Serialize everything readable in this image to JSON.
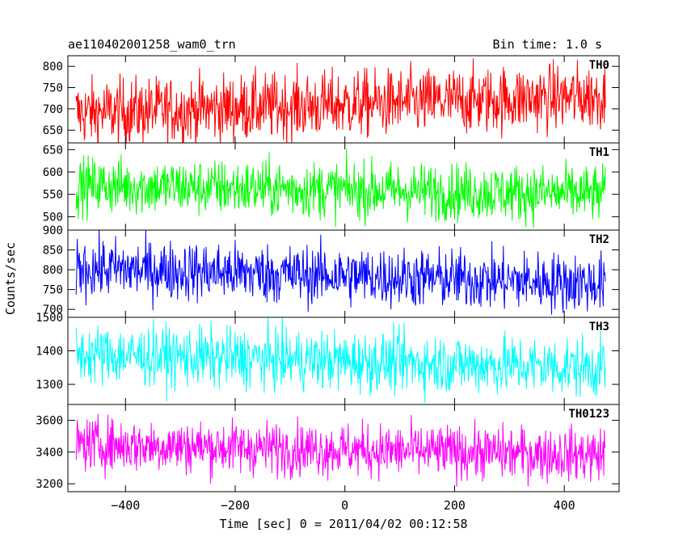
{
  "header": {
    "title": "ae110402001258_wam0_trn",
    "bin_time": "Bin time: 1.0 s"
  },
  "chart_data": {
    "type": "line",
    "xlabel": "Time [sec] 0 = 2011/04/02 00:12:58",
    "ylabel": "Counts/sec",
    "xlim": [
      -505,
      500
    ],
    "x_start": -490,
    "x_end": 475,
    "bin_time_s": 1.0,
    "x_ticks": [
      -400,
      -200,
      0,
      200,
      400
    ],
    "x_tick_labels": [
      "−400",
      "−200",
      "0",
      "200",
      "400"
    ],
    "grid": false,
    "panels": [
      {
        "name": "TH0",
        "color": "#ff0000",
        "ylim": [
          620,
          825
        ],
        "y_ticks": [
          650,
          700,
          750,
          800
        ],
        "y_tick_labels": [
          "650",
          "700",
          "750",
          "800"
        ],
        "mean_start": 690,
        "mean_end": 730,
        "scatter": 40
      },
      {
        "name": "TH1",
        "color": "#00ff00",
        "ylim": [
          470,
          665
        ],
        "y_ticks": [
          500,
          550,
          600,
          650
        ],
        "y_tick_labels": [
          "500",
          "550",
          "600",
          "650"
        ],
        "mean_start": 570,
        "mean_end": 550,
        "scatter": 32
      },
      {
        "name": "TH2",
        "color": "#0000ff",
        "ylim": [
          680,
          900
        ],
        "y_ticks": [
          700,
          750,
          800,
          850,
          900
        ],
        "y_tick_labels": [
          "700",
          "750",
          "800",
          "850",
          "900"
        ],
        "mean_start": 805,
        "mean_end": 765,
        "scatter": 38
      },
      {
        "name": "TH3",
        "color": "#00ffff",
        "ylim": [
          1240,
          1500
        ],
        "y_ticks": [
          1300,
          1400,
          1500
        ],
        "y_tick_labels": [
          "1300",
          "1400",
          "1500"
        ],
        "mean_start": 1390,
        "mean_end": 1350,
        "scatter": 45
      },
      {
        "name": "TH0123",
        "color": "#ff00ff",
        "ylim": [
          3150,
          3700
        ],
        "y_ticks": [
          3200,
          3400,
          3600
        ],
        "y_tick_labels": [
          "3200",
          "3400",
          "3600"
        ],
        "mean_start": 3450,
        "mean_end": 3380,
        "scatter": 85
      }
    ]
  }
}
